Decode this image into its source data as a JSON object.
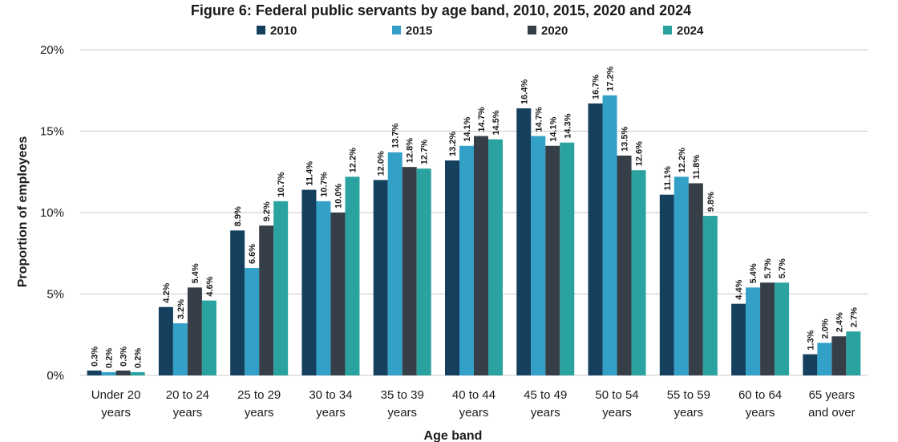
{
  "chart_data": {
    "type": "bar",
    "title": "Figure 6: Federal public servants by age band, 2010, 2015, 2020 and 2024",
    "xlabel": "Age band",
    "ylabel": "Proportion of employees",
    "ylim": [
      0,
      20
    ],
    "yticks": [
      "0%",
      "5%",
      "10%",
      "15%",
      "20%"
    ],
    "grid": true,
    "legend_position": "top",
    "categories": [
      [
        "Under 20",
        "years"
      ],
      [
        "20 to 24",
        "years"
      ],
      [
        "25 to 29",
        "years"
      ],
      [
        "30 to 34",
        "years"
      ],
      [
        "35 to 39",
        "years"
      ],
      [
        "40 to 44",
        "years"
      ],
      [
        "45 to 49",
        "years"
      ],
      [
        "50 to 54",
        "years"
      ],
      [
        "55 to 59",
        "years"
      ],
      [
        "60 to 64",
        "years"
      ],
      [
        "65 years",
        "and over"
      ]
    ],
    "series": [
      {
        "name": "2010",
        "color": "#14405e",
        "values": [
          0.3,
          4.2,
          8.9,
          11.4,
          12.0,
          13.2,
          16.4,
          16.7,
          11.1,
          4.4,
          1.3
        ],
        "labels": [
          "0.3%",
          "4.2%",
          "8.9%",
          "11.4%",
          "12.0%",
          "13.2%",
          "16.4%",
          "16.7%",
          "11.1%",
          "4.4%",
          "1.3%"
        ]
      },
      {
        "name": "2015",
        "color": "#33a0c8",
        "values": [
          0.2,
          3.2,
          6.6,
          10.7,
          13.7,
          14.1,
          14.7,
          17.2,
          12.2,
          5.4,
          2.0
        ],
        "labels": [
          "0.2%",
          "3.2%",
          "6.6%",
          "10.7%",
          "13.7%",
          "14.1%",
          "14.7%",
          "17.2%",
          "12.2%",
          "5.4%",
          "2.0%"
        ]
      },
      {
        "name": "2020",
        "color": "#363f48",
        "values": [
          0.3,
          5.4,
          9.2,
          10.0,
          12.8,
          14.7,
          14.1,
          13.5,
          11.8,
          5.7,
          2.4
        ],
        "labels": [
          "0.3%",
          "5.4%",
          "9.2%",
          "10.0%",
          "12.8%",
          "14.7%",
          "14.1%",
          "13.5%",
          "11.8%",
          "5.7%",
          "2.4%"
        ]
      },
      {
        "name": "2024",
        "color": "#2aa3a0",
        "values": [
          0.2,
          4.6,
          10.7,
          12.2,
          12.7,
          14.5,
          14.3,
          12.6,
          9.8,
          5.7,
          2.7
        ],
        "labels": [
          "0.2%",
          "4.6%",
          "10.7%",
          "12.2%",
          "12.7%",
          "14.5%",
          "14.3%",
          "12.6%",
          "9.8%",
          "5.7%",
          "2.7%"
        ]
      }
    ]
  }
}
